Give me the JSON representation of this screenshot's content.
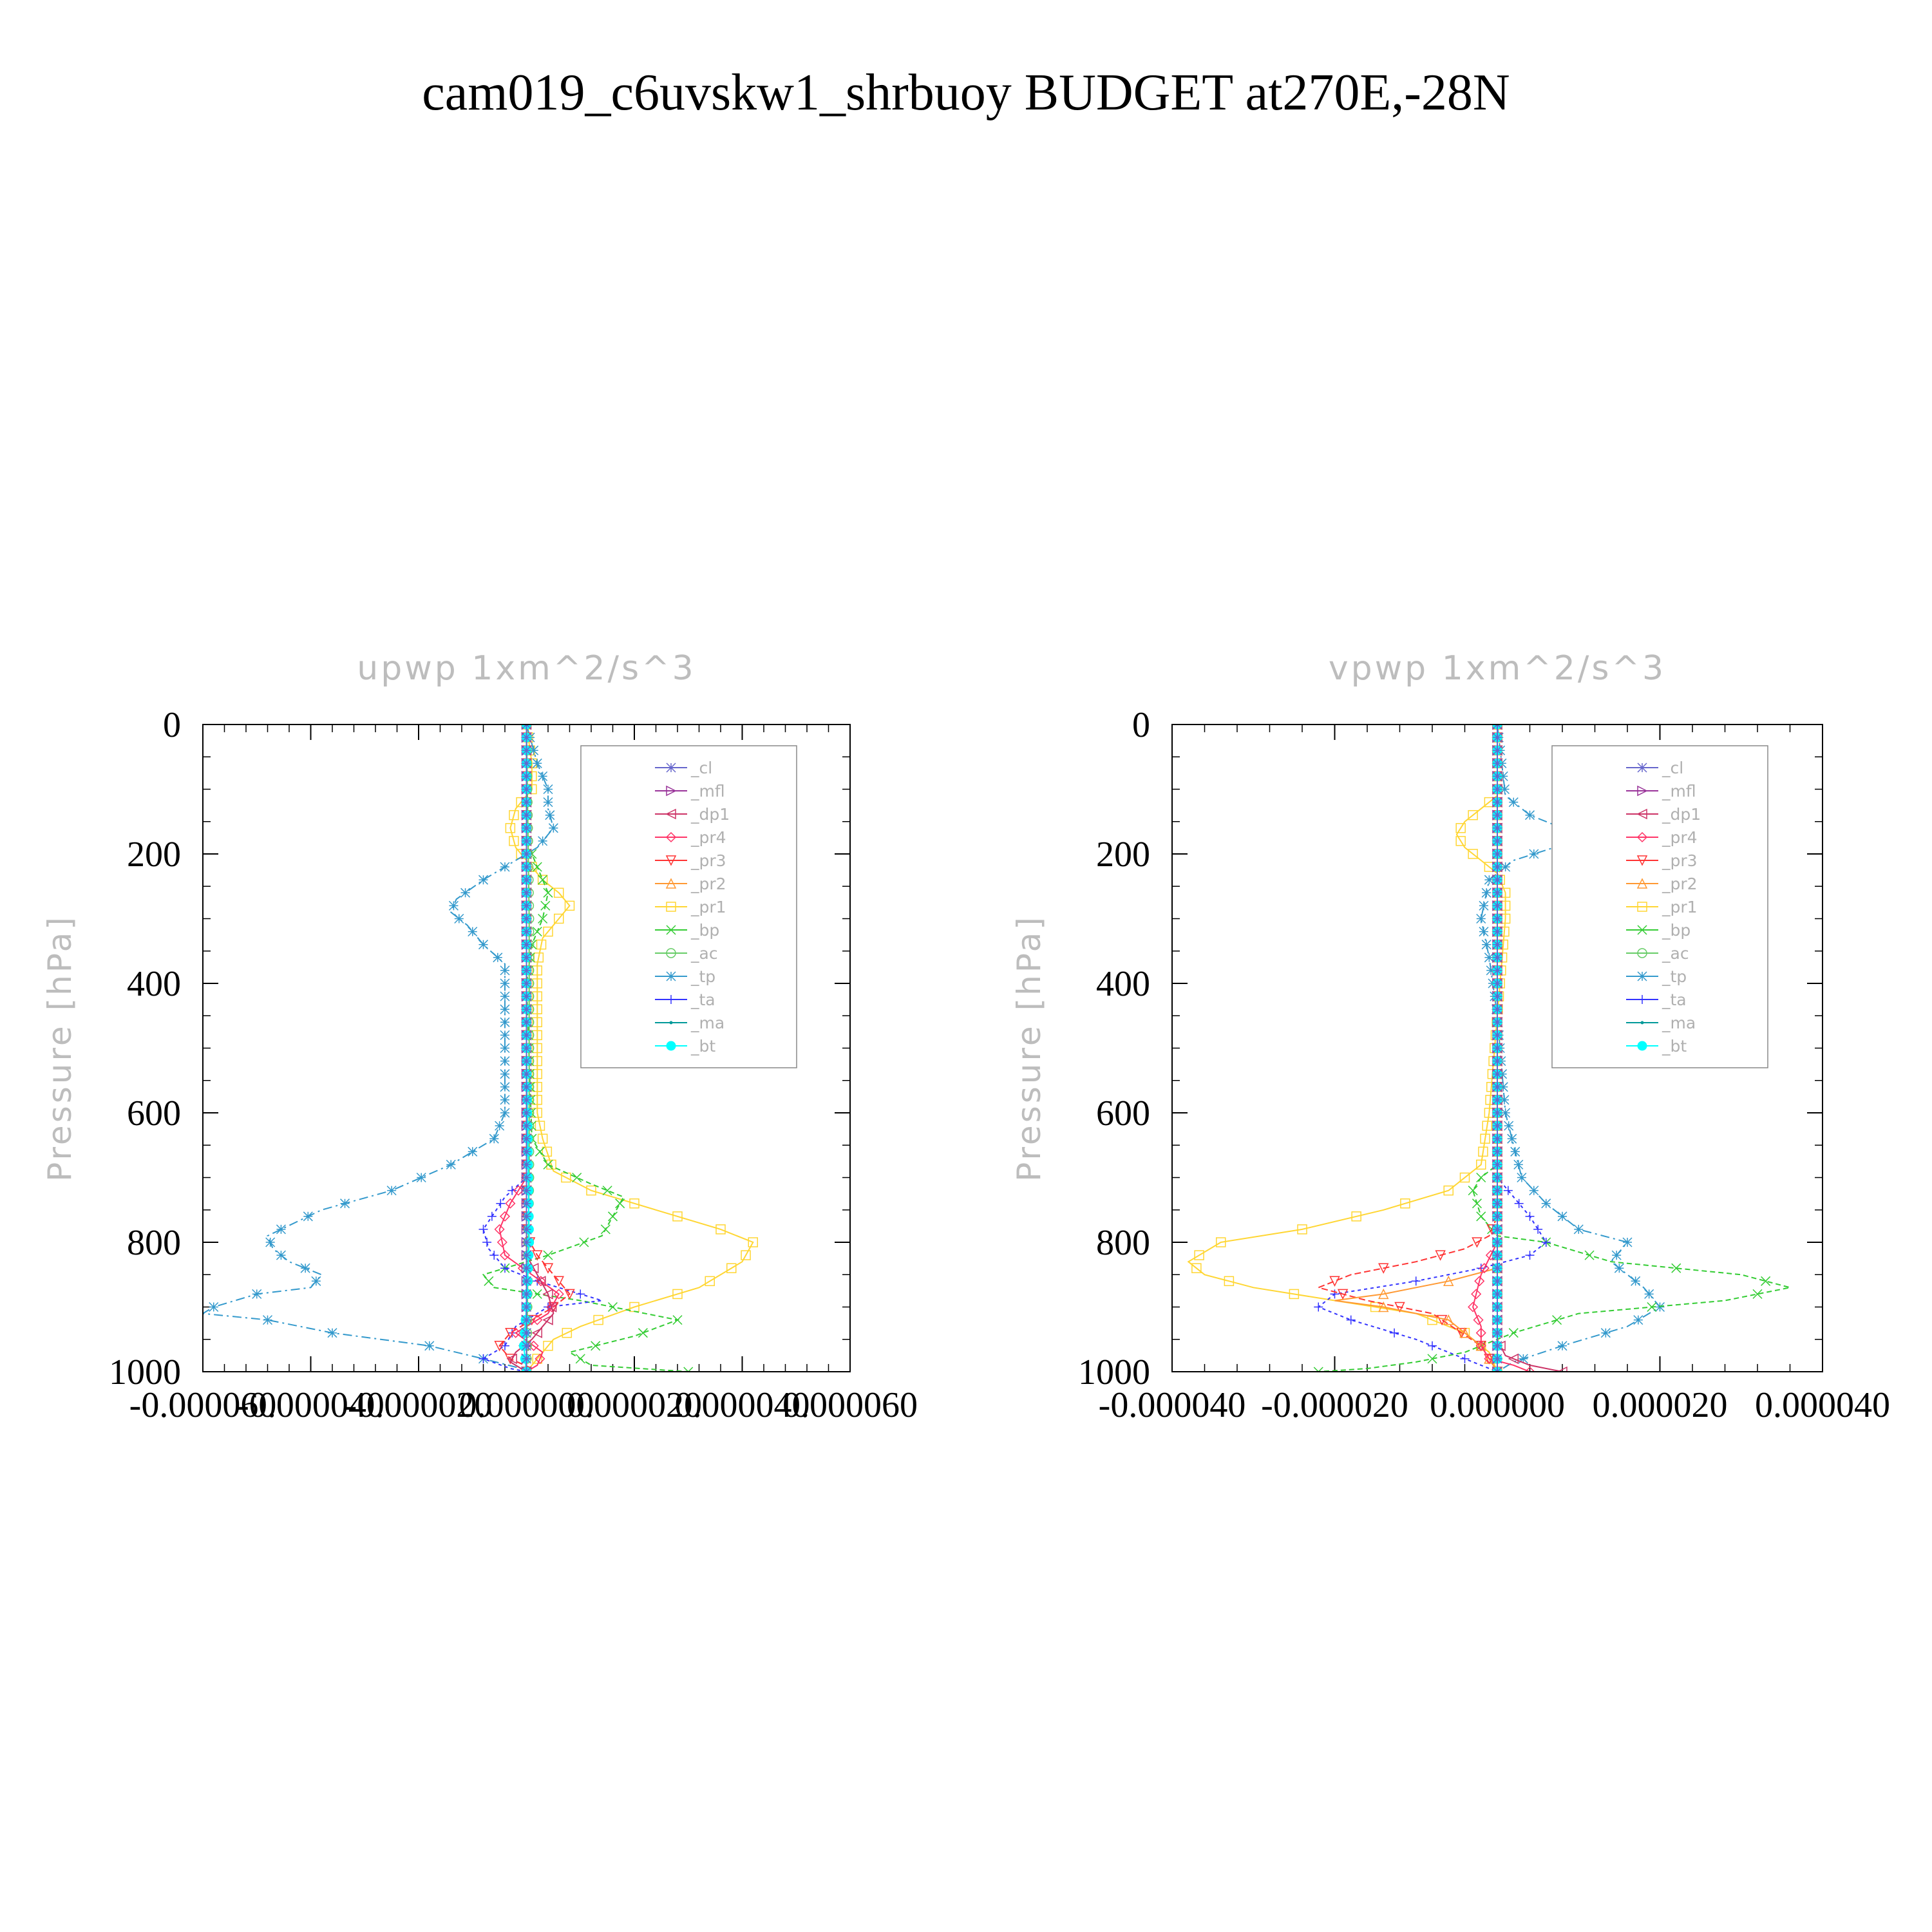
{
  "title": "cam019_c6uvskw1_shrbuoy  BUDGET at270E,-28N",
  "chart_data": [
    {
      "type": "line",
      "title": "upwp    1xm^2/s^3",
      "ylabel": "Pressure [hPa]",
      "xlabel": "",
      "ylim": [
        1000,
        0
      ],
      "xlim": [
        -6e-05,
        6e-05
      ],
      "yticks": [
        0,
        200,
        400,
        600,
        800,
        1000
      ],
      "xticks": [
        -6e-05,
        -4e-05,
        -2e-05,
        0.0,
        2e-05,
        4e-05,
        6e-05
      ],
      "ytick_labels": [
        "0",
        "200",
        "400",
        "600",
        "800",
        "1000"
      ],
      "xtick_labels": [
        "-0.000060",
        "-0.000040",
        "-0.000020",
        "0.000000",
        "0.000020",
        "0.000040",
        "0.000060"
      ],
      "grid": false,
      "legend_position": "top-right",
      "legend": [
        "_cl",
        "_mfl",
        "_dp1",
        "_pr4",
        "_pr3",
        "_pr2",
        "_pr1",
        "_bp",
        "_ac",
        "_tp",
        "_ta",
        "_ma",
        "_bt"
      ],
      "series": [
        {
          "name": "_pr1",
          "color": "#ffd633",
          "marker": "square",
          "dash": "none",
          "x": [
            0,
            1e-06,
            1e-06,
            -2e-06,
            -3e-06,
            -2e-06,
            0,
            3e-06,
            6e-06,
            8e-06,
            6e-06,
            3e-06,
            2e-06,
            2e-06,
            2e-06,
            2e-06,
            2e-06,
            3e-06,
            5e-06,
            1.2e-05,
            2.4e-05,
            3.6e-05,
            4.2e-05,
            4e-05,
            3.2e-05,
            2e-05,
            1e-05,
            5e-06,
            2e-06,
            0
          ],
          "y": [
            0,
            60,
            100,
            130,
            160,
            190,
            210,
            240,
            260,
            280,
            300,
            330,
            370,
            420,
            480,
            540,
            600,
            640,
            690,
            720,
            750,
            780,
            800,
            830,
            870,
            900,
            930,
            950,
            980,
            1000
          ]
        },
        {
          "name": "_bp",
          "color": "#33cc33",
          "marker": "x",
          "dash": "8,5",
          "x": [
            0,
            0,
            2e-06,
            4e-06,
            3e-06,
            1e-06,
            0,
            1e-06,
            4e-06,
            1.2e-05,
            1.8e-05,
            1.4e-05,
            4e-06,
            -8e-06,
            -6e-06,
            1e-05,
            2.8e-05,
            2e-05,
            8e-06,
            1.2e-05,
            3e-05
          ],
          "y": [
            0,
            180,
            220,
            260,
            300,
            340,
            400,
            640,
            680,
            710,
            730,
            790,
            820,
            850,
            870,
            890,
            920,
            945,
            970,
            990,
            1000
          ]
        },
        {
          "name": "_tp",
          "color": "#3399cc",
          "marker": "asterisk",
          "dash": "14,6,3,6",
          "x": [
            0,
            2e-06,
            4e-06,
            4e-06,
            5e-06,
            2e-06,
            -2e-06,
            -8e-06,
            -1.3e-05,
            -1.4e-05,
            -1.1e-05,
            -8e-06,
            -4e-06,
            -4e-06,
            -4e-06,
            -4e-06,
            -4e-06,
            -6e-06,
            -1.4e-05,
            -2.5e-05,
            -3.8e-05,
            -4.8e-05,
            -4.7e-05,
            -4.4e-05,
            -3.8e-05,
            -4e-05,
            -5e-05,
            -5.8e-05,
            -6e-05,
            -4.8e-05,
            -3.6e-05,
            -1.8e-05,
            -8e-06,
            -1e-06,
            0
          ],
          "y": [
            0,
            60,
            100,
            130,
            160,
            190,
            210,
            240,
            270,
            290,
            310,
            340,
            370,
            420,
            480,
            540,
            600,
            640,
            680,
            720,
            750,
            790,
            810,
            830,
            850,
            870,
            880,
            900,
            910,
            920,
            940,
            960,
            980,
            995,
            1000
          ]
        },
        {
          "name": "_ta",
          "color": "#3333ff",
          "marker": "plus",
          "dash": "5,5",
          "x": [
            0,
            0,
            -4e-06,
            -8e-06,
            -7e-06,
            -4e-06,
            2e-06,
            1e-05,
            1.4e-05,
            4e-06,
            -2e-06,
            -4e-06,
            -8e-06,
            -3e-06,
            0
          ],
          "y": [
            0,
            700,
            730,
            780,
            810,
            840,
            860,
            880,
            890,
            900,
            930,
            960,
            980,
            995,
            1000
          ]
        },
        {
          "name": "_pr3",
          "color": "#ff3333",
          "marker": "triangle-down",
          "dash": "10,5",
          "x": [
            0,
            0,
            2e-06,
            4e-06,
            6e-06,
            8e-06,
            5e-06,
            1e-06,
            -3e-06,
            -5e-06,
            -3e-06,
            1e-06,
            0
          ],
          "y": [
            0,
            790,
            820,
            840,
            860,
            880,
            900,
            920,
            940,
            960,
            980,
            995,
            1000
          ]
        },
        {
          "name": "_pr4",
          "color": "#ff3366",
          "marker": "diamond",
          "dash": "none",
          "x": [
            0,
            0,
            -3e-06,
            -5e-06,
            -4e-06,
            1e-06,
            6e-06,
            4e-06,
            -2e-06,
            3e-06,
            2e-06,
            0
          ],
          "y": [
            0,
            700,
            740,
            780,
            820,
            850,
            880,
            910,
            940,
            970,
            990,
            1000
          ]
        },
        {
          "name": "_dp1",
          "color": "#cc3366",
          "marker": "triangle-left",
          "dash": "none",
          "x": [
            0,
            0,
            2e-06,
            4e-06,
            5e-06,
            3e-06,
            1e-06,
            -2e-06,
            -3e-06,
            -1e-06,
            0
          ],
          "y": [
            0,
            820,
            850,
            880,
            910,
            930,
            950,
            970,
            985,
            995,
            1000
          ]
        },
        {
          "name": "_mfl",
          "color": "#993399",
          "marker": "triangle-right",
          "dash": "none",
          "x": [
            0,
            0,
            0,
            0
          ],
          "y": [
            0,
            500,
            900,
            1000
          ]
        },
        {
          "name": "_ac",
          "color": "#66cc66",
          "marker": "circle",
          "dash": "none",
          "x": [
            0,
            5e-07,
            5e-07,
            0
          ],
          "y": [
            0,
            300,
            700,
            1000
          ]
        },
        {
          "name": "_ma",
          "color": "#009999",
          "marker": "dot",
          "dash": "none",
          "x": [
            0,
            0,
            0,
            0
          ],
          "y": [
            0,
            500,
            900,
            1000
          ]
        },
        {
          "name": "_bt",
          "color": "#00ffff",
          "marker": "filled-circle",
          "dash": "none",
          "x": [
            0,
            0,
            5e-07,
            0,
            -5e-07,
            0
          ],
          "y": [
            0,
            500,
            800,
            900,
            960,
            1000
          ]
        },
        {
          "name": "_cl",
          "color": "#6666cc",
          "marker": "star",
          "dash": "none",
          "x": [
            0,
            0,
            0,
            0
          ],
          "y": [
            0,
            400,
            800,
            1000
          ]
        }
      ]
    },
    {
      "type": "line",
      "title": "vpwp    1xm^2/s^3",
      "ylabel": "Pressure [hPa]",
      "xlabel": "",
      "ylim": [
        1000,
        0
      ],
      "xlim": [
        -4e-05,
        4e-05
      ],
      "yticks": [
        0,
        200,
        400,
        600,
        800,
        1000
      ],
      "xticks": [
        -4e-05,
        -2e-05,
        0.0,
        2e-05,
        4e-05
      ],
      "ytick_labels": [
        "0",
        "200",
        "400",
        "600",
        "800",
        "1000"
      ],
      "xtick_labels": [
        "-0.000040",
        "-0.000020",
        "0.000000",
        "0.000020",
        "0.000040"
      ],
      "grid": false,
      "legend_position": "top-right",
      "legend": [
        "_cl",
        "_mfl",
        "_dp1",
        "_pr4",
        "_pr3",
        "_pr2",
        "_pr1",
        "_bp",
        "_ac",
        "_tp",
        "_ta",
        "_ma",
        "_bt"
      ],
      "series": [
        {
          "name": "_pr1",
          "color": "#ffd633",
          "marker": "square",
          "dash": "none",
          "x": [
            0,
            0,
            -2e-06,
            -4e-06,
            -5e-06,
            -4e-06,
            -2e-06,
            0,
            1e-06,
            1e-06,
            0,
            -1e-06,
            -2e-06,
            -6e-06,
            -1.4e-05,
            -2.4e-05,
            -3.4e-05,
            -3.8e-05,
            -3.6e-05,
            -3e-05,
            -2e-05,
            -1e-05,
            -4e-06,
            -1e-06,
            0
          ],
          "y": [
            0,
            110,
            130,
            150,
            170,
            190,
            210,
            230,
            260,
            300,
            450,
            600,
            680,
            720,
            750,
            780,
            800,
            830,
            850,
            870,
            890,
            910,
            940,
            970,
            1000
          ]
        },
        {
          "name": "_tp",
          "color": "#3399cc",
          "marker": "asterisk",
          "dash": "14,6,3,6",
          "x": [
            0,
            1e-06,
            4e-06,
            8e-06,
            7e-06,
            2e-06,
            -1e-06,
            -2e-06,
            -1e-06,
            0,
            1e-06,
            3e-06,
            6e-06,
            1e-05,
            1.6e-05,
            1.4e-05,
            1.8e-05,
            2e-05,
            1.6e-05,
            8e-06,
            2e-06,
            0
          ],
          "y": [
            0,
            110,
            140,
            160,
            190,
            210,
            240,
            300,
            360,
            450,
            600,
            700,
            740,
            780,
            800,
            830,
            870,
            900,
            930,
            960,
            985,
            1000
          ]
        },
        {
          "name": "_bp",
          "color": "#33cc33",
          "marker": "x",
          "dash": "8,5",
          "x": [
            0,
            0,
            -2e-06,
            -3e-06,
            -2e-06,
            0,
            6e-06,
            1.4e-05,
            3e-05,
            3.6e-05,
            2.8e-05,
            1e-05,
            2e-06,
            -4e-06,
            -1e-05,
            -1.6e-05,
            -2.2e-05
          ],
          "y": [
            0,
            680,
            700,
            720,
            760,
            790,
            800,
            830,
            850,
            870,
            890,
            910,
            940,
            970,
            985,
            995,
            1000
          ]
        },
        {
          "name": "_ta",
          "color": "#3333ff",
          "marker": "plus",
          "dash": "5,5",
          "x": [
            0,
            0,
            2e-06,
            4e-06,
            6e-06,
            4e-06,
            -2e-06,
            -1e-05,
            -2e-05,
            -2.2e-05,
            -1.8e-05,
            -1e-05,
            -4e-06,
            0
          ],
          "y": [
            0,
            700,
            730,
            760,
            800,
            820,
            840,
            860,
            880,
            900,
            920,
            950,
            980,
            1000
          ]
        },
        {
          "name": "_pr3",
          "color": "#ff3333",
          "marker": "triangle-down",
          "dash": "10,5",
          "x": [
            0,
            0,
            -1e-06,
            -4e-06,
            -1e-05,
            -1.8e-05,
            -2.2e-05,
            -1.6e-05,
            -8e-06,
            -2e-06,
            0
          ],
          "y": [
            0,
            760,
            790,
            810,
            830,
            850,
            870,
            890,
            910,
            960,
            1000
          ]
        },
        {
          "name": "_pr2",
          "color": "#ff9933",
          "marker": "triangle-up",
          "dash": "none",
          "x": [
            0,
            0,
            -6e-06,
            -1.4e-05,
            -2e-05,
            -1.4e-05,
            -6e-06,
            -2e-06,
            0
          ],
          "y": [
            0,
            840,
            860,
            880,
            890,
            900,
            920,
            960,
            1000
          ]
        },
        {
          "name": "_pr4",
          "color": "#ff3366",
          "marker": "diamond",
          "dash": "none",
          "x": [
            0,
            0,
            -2e-06,
            -3e-06,
            -2e-06,
            -2e-06,
            -1e-06,
            2e-06,
            4e-06
          ],
          "y": [
            0,
            800,
            850,
            900,
            930,
            960,
            980,
            990,
            1000
          ]
        },
        {
          "name": "_dp1",
          "color": "#cc3366",
          "marker": "triangle-left",
          "dash": "none",
          "x": [
            0,
            0,
            1e-06,
            4e-06,
            8e-06
          ],
          "y": [
            0,
            950,
            975,
            990,
            1000
          ]
        },
        {
          "name": "_mfl",
          "color": "#993399",
          "marker": "triangle-right",
          "dash": "none",
          "x": [
            0,
            0,
            0,
            0
          ],
          "y": [
            0,
            500,
            900,
            1000
          ]
        },
        {
          "name": "_ac",
          "color": "#66cc66",
          "marker": "circle",
          "dash": "none",
          "x": [
            0,
            0,
            0,
            0
          ],
          "y": [
            0,
            300,
            700,
            1000
          ]
        },
        {
          "name": "_ma",
          "color": "#009999",
          "marker": "dot",
          "dash": "none",
          "x": [
            0,
            0,
            0,
            0
          ],
          "y": [
            0,
            500,
            900,
            1000
          ]
        },
        {
          "name": "_bt",
          "color": "#00ffff",
          "marker": "filled-circle",
          "dash": "none",
          "x": [
            0,
            0,
            0,
            0
          ],
          "y": [
            0,
            500,
            900,
            1000
          ]
        },
        {
          "name": "_cl",
          "color": "#6666cc",
          "marker": "star",
          "dash": "none",
          "x": [
            0,
            0,
            0,
            0
          ],
          "y": [
            0,
            400,
            800,
            1000
          ]
        }
      ]
    }
  ]
}
